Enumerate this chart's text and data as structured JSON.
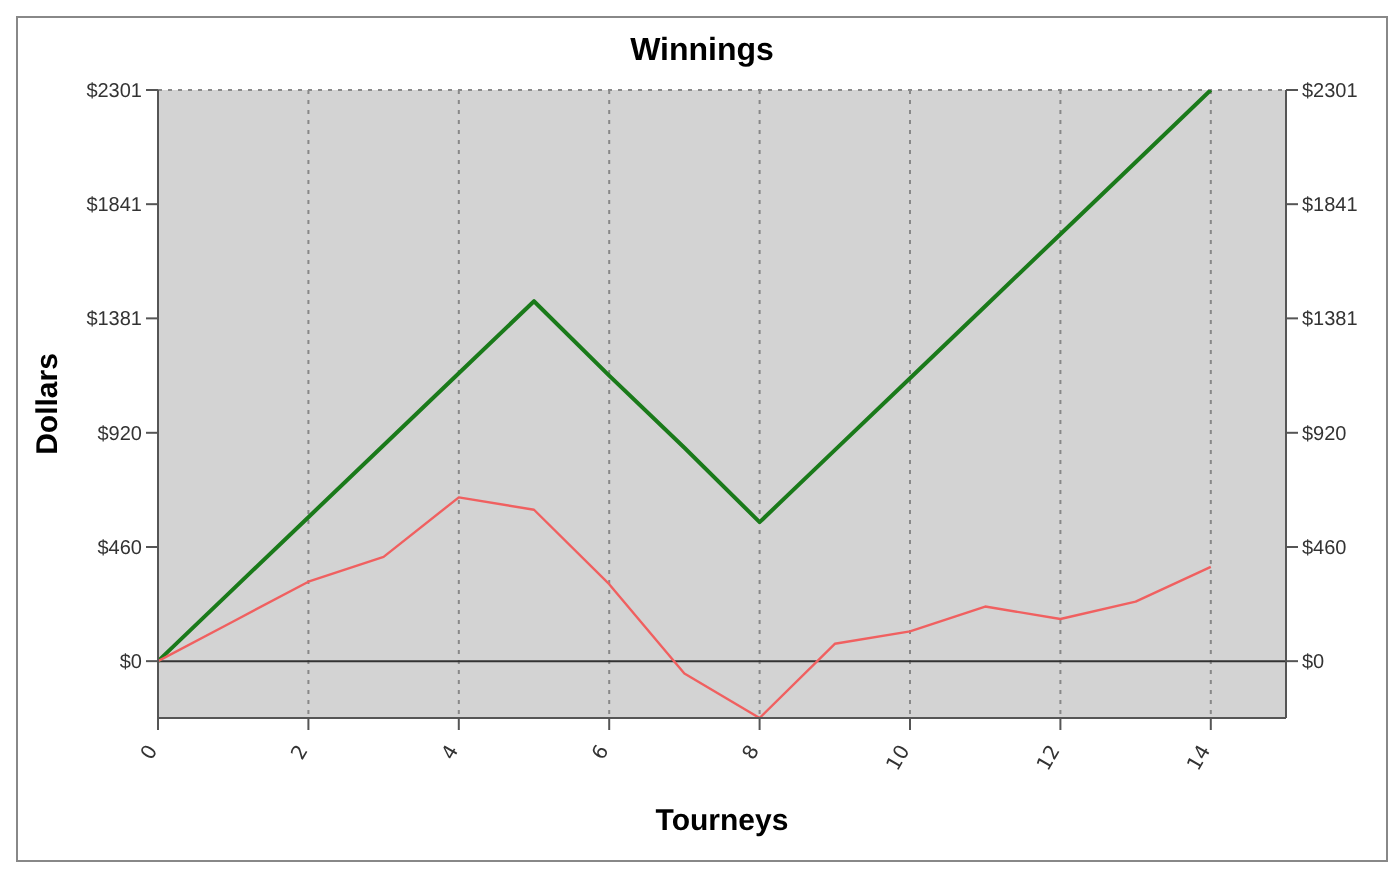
{
  "chart_data": {
    "type": "line",
    "title": "Winnings",
    "xlabel": "Tourneys",
    "ylabel": "Dollars",
    "x": [
      0,
      1,
      2,
      3,
      4,
      5,
      6,
      7,
      8,
      9,
      10,
      11,
      12,
      13,
      14
    ],
    "series": [
      {
        "color": "#1a7a1a",
        "values": [
          0,
          290,
          580,
          870,
          1160,
          1450,
          1150,
          860,
          560,
          850,
          1140,
          1430,
          1720,
          2010,
          2301
        ]
      },
      {
        "color": "#f06060",
        "values": [
          0,
          160,
          320,
          420,
          660,
          610,
          310,
          -50,
          -229,
          70,
          120,
          220,
          170,
          240,
          380
        ]
      }
    ],
    "xlim": [
      0,
      15
    ],
    "xticks": [
      0,
      2,
      4,
      6,
      8,
      10,
      12,
      14
    ],
    "ylim": [
      -229,
      2301
    ],
    "yticks": [
      {
        "value": 0,
        "label": "$0"
      },
      {
        "value": 460,
        "label": "$460"
      },
      {
        "value": 920,
        "label": "$920"
      },
      {
        "value": 1381,
        "label": "$1381"
      },
      {
        "value": 1841,
        "label": "$1841"
      },
      {
        "value": 2301,
        "label": "$2301"
      }
    ],
    "y2lim": [
      -229,
      2301
    ],
    "y2ticks": [
      {
        "value": 0,
        "label": "$0"
      },
      {
        "value": 460,
        "label": "$460"
      },
      {
        "value": 920,
        "label": "$920"
      },
      {
        "value": 1381,
        "label": "$1381"
      },
      {
        "value": 1841,
        "label": "$1841"
      },
      {
        "value": 2301,
        "label": "$2301"
      }
    ],
    "ref_lines": [
      {
        "axis": "y",
        "value": 0,
        "color": "#333333"
      }
    ],
    "grid": true,
    "marker": "none",
    "line_style": "solid"
  }
}
